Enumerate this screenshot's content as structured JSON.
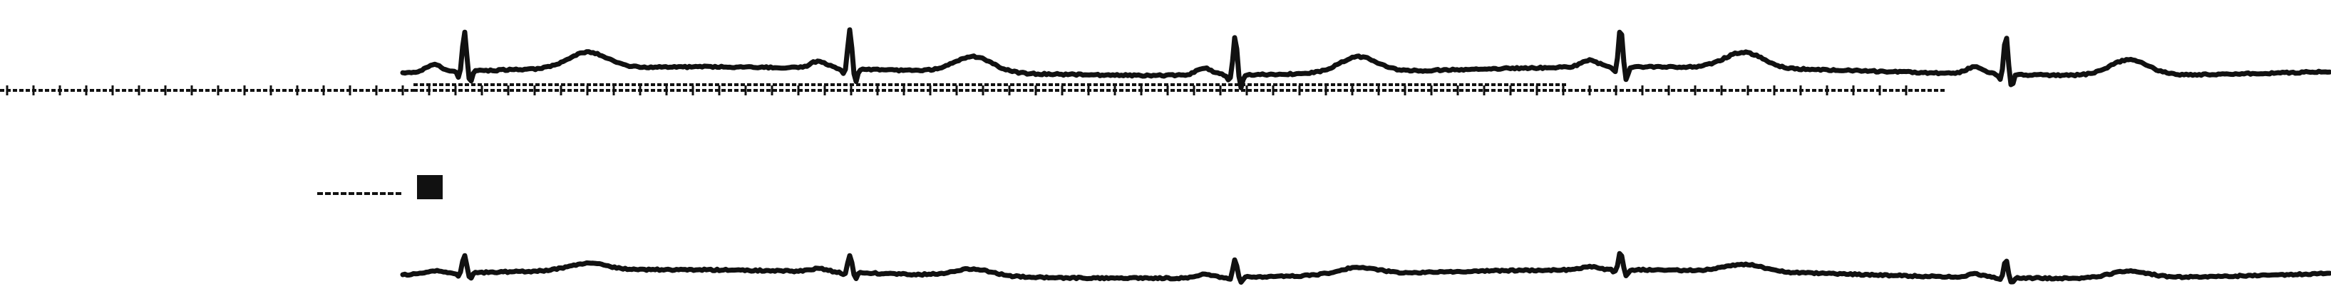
{
  "figure": {
    "colors": {
      "background": "#ffffff",
      "ink": "#111111"
    },
    "traces": [
      {
        "name": "upper-trace",
        "beats": 5,
        "amplitude_profile": "ecg-like",
        "line_style": "solid"
      },
      {
        "name": "lower-trace",
        "beats": 5,
        "amplitude_profile": "ecg-like-low",
        "line_style": "solid"
      }
    ],
    "baseline": {
      "line_style": "dotted"
    },
    "calibration_mark": {
      "present": true
    }
  }
}
